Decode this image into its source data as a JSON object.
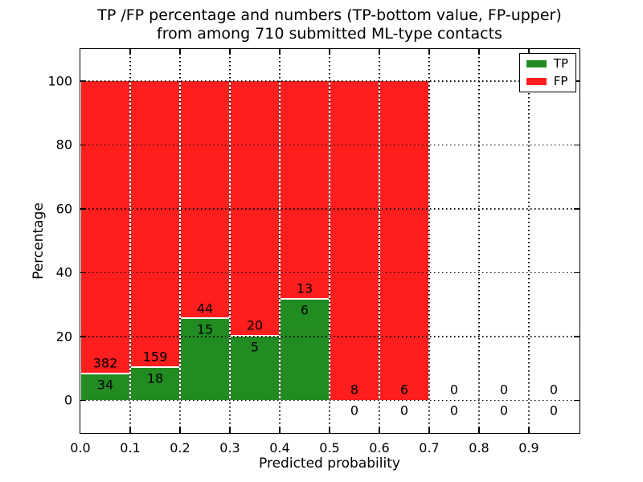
{
  "chart_data": {
    "type": "bar",
    "subtype": "stacked-percentage-histogram",
    "title": "TP /FP percentage and numbers (TP-bottom value, FP-upper)\nfrom among 710 submitted ML-type contacts",
    "title_line1": "TP /FP percentage and numbers (TP-bottom value, FP-upper)",
    "title_line2": "from among 710 submitted ML-type contacts",
    "xlabel": "Predicted probability",
    "ylabel": "Percentage",
    "total_contacts": 710,
    "xlim": [
      0.0,
      1.0
    ],
    "ylim": [
      -10,
      110
    ],
    "x_tick_values": [
      0.0,
      0.1,
      0.2,
      0.3,
      0.4,
      0.5,
      0.6,
      0.7,
      0.8,
      0.9
    ],
    "x_tick_labels": [
      "0.0",
      "0.1",
      "0.2",
      "0.3",
      "0.4",
      "0.5",
      "0.6",
      "0.7",
      "0.8",
      "0.9"
    ],
    "y_tick_values": [
      0,
      20,
      40,
      60,
      80,
      100
    ],
    "y_tick_labels": [
      "0",
      "20",
      "40",
      "60",
      "80",
      "100"
    ],
    "grid": {
      "visible": true,
      "style": "dotted",
      "color": "#000000"
    },
    "legend": {
      "position": "upper-right",
      "entries": [
        {
          "label": "TP",
          "color": "#228B22"
        },
        {
          "label": "FP",
          "color": "#FF1E1E"
        }
      ]
    },
    "categories": [
      "0.0-0.1",
      "0.1-0.2",
      "0.2-0.3",
      "0.3-0.4",
      "0.4-0.5",
      "0.5-0.6",
      "0.6-0.7",
      "0.7-0.8",
      "0.8-0.9",
      "0.9-1.0"
    ],
    "series": [
      {
        "name": "TP",
        "counts": [
          34,
          18,
          15,
          5,
          6,
          0,
          0,
          0,
          0,
          0
        ]
      },
      {
        "name": "FP",
        "counts": [
          382,
          159,
          44,
          20,
          13,
          8,
          6,
          0,
          0,
          0
        ]
      }
    ],
    "bins": [
      {
        "x0": 0.0,
        "x1": 0.1,
        "tp": 34,
        "fp": 382,
        "tp_pct": 8.17,
        "has_bar": true
      },
      {
        "x0": 0.1,
        "x1": 0.2,
        "tp": 18,
        "fp": 159,
        "tp_pct": 10.17,
        "has_bar": true
      },
      {
        "x0": 0.2,
        "x1": 0.3,
        "tp": 15,
        "fp": 44,
        "tp_pct": 25.42,
        "has_bar": true
      },
      {
        "x0": 0.3,
        "x1": 0.4,
        "tp": 5,
        "fp": 20,
        "tp_pct": 20.0,
        "has_bar": true
      },
      {
        "x0": 0.4,
        "x1": 0.5,
        "tp": 6,
        "fp": 13,
        "tp_pct": 31.58,
        "has_bar": true
      },
      {
        "x0": 0.5,
        "x1": 0.6,
        "tp": 0,
        "fp": 8,
        "tp_pct": 0,
        "has_bar": true
      },
      {
        "x0": 0.6,
        "x1": 0.7,
        "tp": 0,
        "fp": 6,
        "tp_pct": 0,
        "has_bar": true
      },
      {
        "x0": 0.7,
        "x1": 0.8,
        "tp": 0,
        "fp": 0,
        "tp_pct": 0,
        "has_bar": false
      },
      {
        "x0": 0.8,
        "x1": 0.9,
        "tp": 0,
        "fp": 0,
        "tp_pct": 0,
        "has_bar": false
      },
      {
        "x0": 0.9,
        "x1": 1.0,
        "tp": 0,
        "fp": 0,
        "tp_pct": 0,
        "has_bar": false
      }
    ]
  },
  "colors": {
    "tp": "#228B22",
    "fp": "#FF1E1E",
    "axis": "#000000",
    "text": "#000000",
    "background": "#FFFFFF",
    "bar_gap": "#FFFFFF"
  }
}
